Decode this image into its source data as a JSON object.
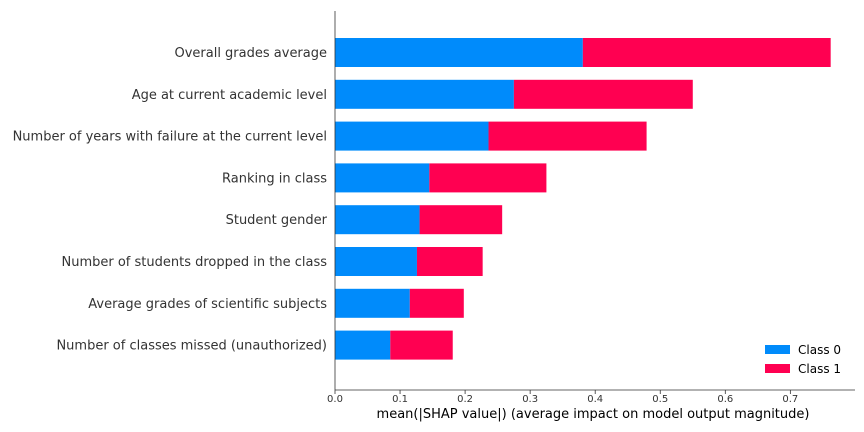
{
  "chart_data": {
    "type": "bar",
    "orientation": "horizontal",
    "stacked": true,
    "title": "",
    "xlabel": "mean(|SHAP value|) (average impact on model output magnitude)",
    "ylabel": "",
    "xlim": [
      0,
      0.8
    ],
    "xticks": [
      "0.0",
      "0.1",
      "0.2",
      "0.3",
      "0.4",
      "0.5",
      "0.6",
      "0.7"
    ],
    "grid": false,
    "legend_position": "lower-right",
    "categories": [
      "Overall grades average",
      "Age at current academic level",
      "Number of years with failure at the current level",
      "Ranking in class",
      "Student gender",
      "Number of students dropped in the class",
      "Average grades of scientific subjects",
      "Number of classes missed (unauthorized)"
    ],
    "series": [
      {
        "name": "Class 0",
        "color": "#008bfb",
        "values": [
          0.381,
          0.275,
          0.236,
          0.145,
          0.13,
          0.126,
          0.115,
          0.085
        ]
      },
      {
        "name": "Class 1",
        "color": "#ff0051",
        "values": [
          0.381,
          0.275,
          0.243,
          0.18,
          0.127,
          0.101,
          0.083,
          0.096
        ]
      }
    ]
  }
}
